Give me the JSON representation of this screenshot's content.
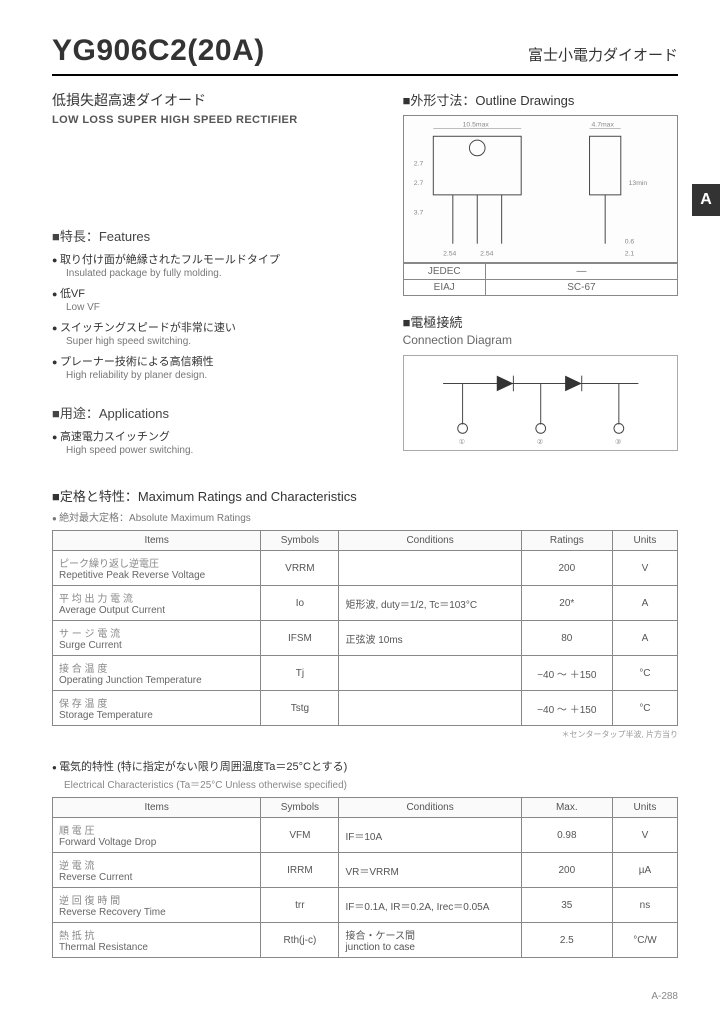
{
  "header": {
    "part": "YG906C2",
    "sub": "(20A)",
    "brand_jp": "富士小電力ダイオード"
  },
  "subtitle": {
    "jp": "低損失超高速ダイオード",
    "en": "LOW LOSS SUPER HIGH SPEED RECTIFIER"
  },
  "side_tab": "A",
  "features": {
    "title": "■特長：Features",
    "items": [
      {
        "jp": "取り付け面が絶縁されたフルモールドタイプ",
        "en": "Insulated package by fully molding."
      },
      {
        "jp": "低VF",
        "en": "Low VF"
      },
      {
        "jp": "スイッチングスピードが非常に速い",
        "en": "Super high speed switching."
      },
      {
        "jp": "プレーナー技術による高信頼性",
        "en": "High reliability by planer design."
      }
    ]
  },
  "applications": {
    "title": "■用途：Applications",
    "items": [
      {
        "jp": "高速電力スイッチング",
        "en": "High speed power switching."
      }
    ]
  },
  "outline": {
    "title": "■外形寸法：Outline Drawings",
    "dims": {
      "w_max": "10.5max",
      "h": "2.7",
      "h2": "2.7",
      "lead": "3.7",
      "pitch": "2.54",
      "pitch2": "2.54",
      "thick": "4.7max",
      "body_h": "13min",
      "lead_w": "0.6",
      "lead_t": "2.1"
    },
    "pkg_rows": [
      {
        "std": "JEDEC",
        "code": "—"
      },
      {
        "std": "EIAJ",
        "code": "SC-67"
      }
    ]
  },
  "connection": {
    "title_jp": "■電極接続",
    "title_en": "Connection Diagram",
    "pins": [
      "①",
      "②",
      "③"
    ]
  },
  "max_ratings": {
    "title": "■定格と特性：Maximum Ratings and Characteristics",
    "abs_sub": "絶対最大定格：Absolute Maximum Ratings",
    "headers": {
      "items": "Items",
      "symbols": "Symbols",
      "conditions": "Conditions",
      "ratings": "Ratings",
      "units": "Units"
    },
    "rows": [
      {
        "jp": "ピーク繰り返し逆電圧",
        "en": "Repetitive Peak Reverse Voltage",
        "sym": "VRRM",
        "cond": "",
        "rat": "200",
        "unit": "V"
      },
      {
        "jp": "平 均 出 力 電 流",
        "en": "Average Output Current",
        "sym": "Io",
        "cond": "矩形波, duty＝1/2, Tc＝103°C",
        "rat": "20*",
        "unit": "A"
      },
      {
        "jp": "サ ー ジ 電 流",
        "en": "Surge Current",
        "sym": "IFSM",
        "cond": "正弦波  10ms",
        "rat": "80",
        "unit": "A"
      },
      {
        "jp": "接 合 温 度",
        "en": "Operating Junction Temperature",
        "sym": "Tj",
        "cond": "",
        "rat": "−40 ～ ＋150",
        "unit": "°C"
      },
      {
        "jp": "保 存 温 度",
        "en": "Storage Temperature",
        "sym": "Tstg",
        "cond": "",
        "rat": "−40 ～ ＋150",
        "unit": "°C"
      }
    ],
    "footnote": "＊センタータップ半波, 片方当り"
  },
  "electrical": {
    "jp": "電気的特性 (特に指定がない限り周囲温度Ta＝25°Cとする)",
    "en": "Electrical Characteristics (Ta＝25°C Unless otherwise specified)",
    "headers": {
      "items": "Items",
      "symbols": "Symbols",
      "conditions": "Conditions",
      "max": "Max.",
      "units": "Units"
    },
    "rows": [
      {
        "jp": "順 電 圧",
        "en": "Forward Voltage Drop",
        "sym": "VFM",
        "cond": "IF＝10A",
        "val": "0.98",
        "unit": "V"
      },
      {
        "jp": "逆 電 流",
        "en": "Reverse Current",
        "sym": "IRRM",
        "cond": "VR＝VRRM",
        "val": "200",
        "unit": "µA"
      },
      {
        "jp": "逆 回 復 時 間",
        "en": "Reverse Recovery Time",
        "sym": "trr",
        "cond": "IF＝0.1A, IR＝0.2A, Irec＝0.05A",
        "val": "35",
        "unit": "ns"
      },
      {
        "jp": "熱 抵 抗",
        "en": "Thermal Resistance",
        "sym": "Rth(j-c)",
        "cond": "接合・ケース間\njunction to case",
        "val": "2.5",
        "unit": "°C/W"
      }
    ]
  },
  "page_no": "A-288"
}
